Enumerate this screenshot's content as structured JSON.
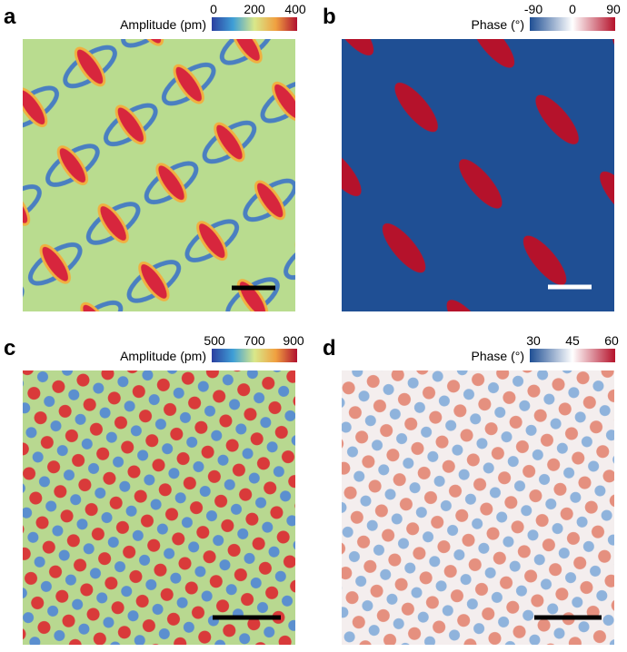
{
  "panels": [
    {
      "label": "a",
      "colorbar": {
        "title": "Amplitude (pm)",
        "ticks": [
          0,
          200,
          400
        ]
      }
    },
    {
      "label": "b",
      "colorbar": {
        "title": "Phase (°)",
        "ticks": [
          -90,
          0,
          90
        ]
      }
    },
    {
      "label": "c",
      "colorbar": {
        "title": "Amplitude (pm)",
        "ticks": [
          500,
          700,
          900
        ]
      }
    },
    {
      "label": "d",
      "colorbar": {
        "title": "Phase (°)",
        "ticks": [
          30,
          45,
          60
        ]
      }
    }
  ]
}
